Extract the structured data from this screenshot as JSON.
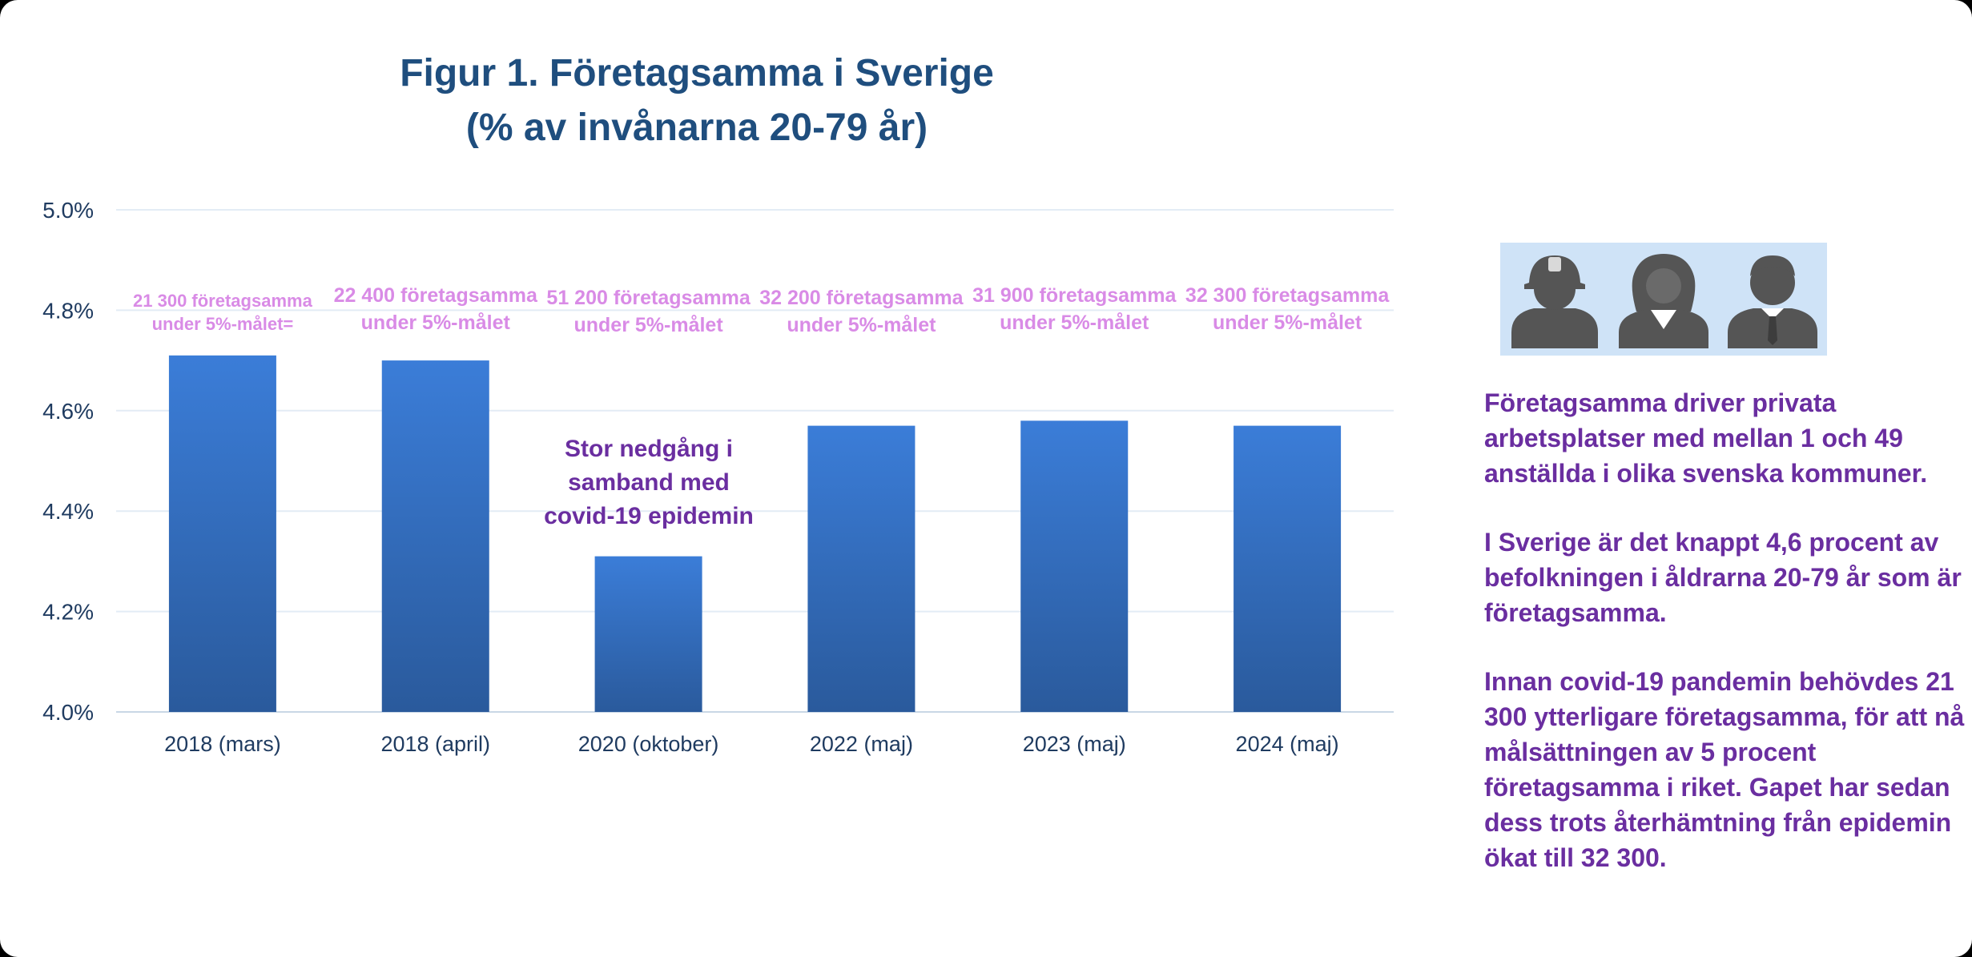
{
  "colors": {
    "title": "#1f4e7e",
    "bar_top": "#3b7dd8",
    "bar_bottom": "#2a5a9c",
    "bar_label": "#d98be6",
    "note": "#6a2ea0",
    "axis_text": "#1f3b60",
    "grid": "#e3ecf5",
    "icon_bg": "#cfe3f7",
    "icon_fill": "#555555"
  },
  "chart_data": {
    "type": "bar",
    "title": "Figur 1. Företagsamma i Sverige",
    "subtitle": "(% av invånarna 20-79 år)",
    "categories": [
      "2018 (mars)",
      "2018 (april)",
      "2020 (oktober)",
      "2022 (maj)",
      "2023 (maj)",
      "2024 (maj)"
    ],
    "values": [
      4.71,
      4.7,
      4.31,
      4.57,
      4.58,
      4.57
    ],
    "ylim": [
      4.0,
      5.0
    ],
    "yticks": [
      4.0,
      4.2,
      4.4,
      4.6,
      4.8,
      5.0
    ],
    "ytick_labels": [
      "4.0%",
      "4.2%",
      "4.4%",
      "4.6%",
      "4.8%",
      "5.0%"
    ],
    "grid": true,
    "xlabel": "",
    "ylabel": "",
    "data_labels": [
      [
        "21 300 företagsamma",
        "under 5%-målet="
      ],
      [
        "22 400 företagsamma",
        "under 5%-målet"
      ],
      [
        "51 200 företagsamma",
        "under 5%-målet"
      ],
      [
        "32 200 företagsamma",
        "under 5%-målet"
      ],
      [
        "31 900 företagsamma",
        "under 5%-målet"
      ],
      [
        "32 300 företagsamma",
        "under 5%-målet"
      ]
    ],
    "annotation": [
      "Stor nedgång i",
      "samband med",
      "covid-19 epidemin"
    ]
  },
  "icons": [
    "worker-icon",
    "businesswoman-icon",
    "businessman-icon"
  ],
  "side_text": {
    "p1": "Företagsamma driver privata arbetsplatser med mellan 1 och 49 anställda i olika svenska kommuner.",
    "p2": "I Sverige är det knappt 4,6 procent av befolkningen i åldrarna 20-79 år som är företagsamma.",
    "p3": "Innan covid-19 pandemin behövdes 21 300 ytterligare företagsamma, för att nå målsättningen av 5 procent företagsamma i riket. Gapet har sedan dess trots återhämtning från epidemin ökat till 32 300."
  }
}
